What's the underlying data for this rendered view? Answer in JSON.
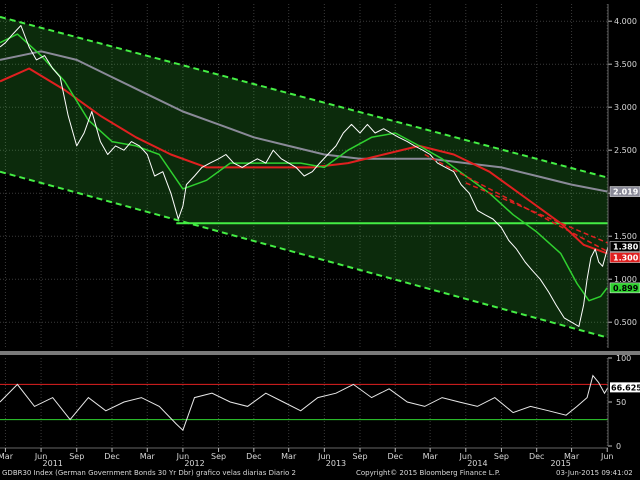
{
  "chart_data": [
    {
      "type": "line",
      "panel": "price",
      "y_scale": "linear",
      "ylim": [
        0.2,
        4.2
      ],
      "y_ticks": [
        "4.000",
        "3.500",
        "3.000",
        "2.500",
        "2.000",
        "1.500",
        "1.000",
        "0.500"
      ],
      "grid": true,
      "x_axis": {
        "month_ticks": [
          "Mar",
          "Jun",
          "Sep",
          "Dec",
          "Mar",
          "Jun",
          "Sep",
          "Dec",
          "Mar",
          "Jun",
          "Sep",
          "Dec",
          "Mar",
          "Jun",
          "Sep",
          "Dec",
          "Mar",
          "Jun"
        ],
        "month_dates": [
          "2011-03",
          "2011-06",
          "2011-09",
          "2011-12",
          "2012-03",
          "2012-06",
          "2012-09",
          "2012-12",
          "2013-03",
          "2013-06",
          "2013-09",
          "2013-12",
          "2014-03",
          "2014-06",
          "2014-09",
          "2014-12",
          "2015-03",
          "2015-06"
        ],
        "year_ticks": [
          "2011",
          "2012",
          "2013",
          "2014",
          "2015"
        ],
        "year_dates": [
          "2011-07",
          "2012-07",
          "2013-07",
          "2014-07",
          "2015-02"
        ]
      },
      "series": [
        {
          "color": "#ffffff",
          "x": [
            "2011-02-15",
            "2011-03-01",
            "2011-03-20",
            "2011-04-10",
            "2011-05-01",
            "2011-05-20",
            "2011-06-10",
            "2011-07-01",
            "2011-07-20",
            "2011-08-10",
            "2011-09-01",
            "2011-09-20",
            "2011-10-10",
            "2011-11-01",
            "2011-11-20",
            "2011-12-10",
            "2012-01-01",
            "2012-01-20",
            "2012-02-10",
            "2012-03-01",
            "2012-03-20",
            "2012-04-10",
            "2012-05-01",
            "2012-05-20",
            "2012-06-01",
            "2012-06-10",
            "2012-07-01",
            "2012-07-20",
            "2012-08-10",
            "2012-09-01",
            "2012-09-20",
            "2012-10-10",
            "2012-11-01",
            "2012-11-20",
            "2012-12-10",
            "2013-01-01",
            "2013-01-20",
            "2013-02-10",
            "2013-03-01",
            "2013-03-20",
            "2013-04-10",
            "2013-05-01",
            "2013-05-20",
            "2013-06-10",
            "2013-07-01",
            "2013-07-20",
            "2013-08-10",
            "2013-09-01",
            "2013-09-20",
            "2013-10-10",
            "2013-11-01",
            "2013-11-20",
            "2013-12-10",
            "2014-01-01",
            "2014-01-20",
            "2014-02-10",
            "2014-03-01",
            "2014-03-20",
            "2014-04-10",
            "2014-05-01",
            "2014-05-20",
            "2014-06-10",
            "2014-07-01",
            "2014-07-20",
            "2014-08-10",
            "2014-09-01",
            "2014-09-20",
            "2014-10-10",
            "2014-11-01",
            "2014-11-20",
            "2014-12-10",
            "2015-01-01",
            "2015-01-20",
            "2015-02-10",
            "2015-03-01",
            "2015-03-20",
            "2015-04-01",
            "2015-04-10",
            "2015-04-20",
            "2015-05-01",
            "2015-05-10",
            "2015-05-20",
            "2015-06-03"
          ],
          "y": [
            3.7,
            3.75,
            3.85,
            3.95,
            3.7,
            3.55,
            3.6,
            3.45,
            3.35,
            2.9,
            2.55,
            2.7,
            2.95,
            2.6,
            2.45,
            2.55,
            2.5,
            2.6,
            2.55,
            2.45,
            2.2,
            2.25,
            2.0,
            1.7,
            1.85,
            2.1,
            2.2,
            2.3,
            2.35,
            2.4,
            2.45,
            2.35,
            2.3,
            2.35,
            2.4,
            2.35,
            2.5,
            2.4,
            2.35,
            2.3,
            2.2,
            2.25,
            2.35,
            2.45,
            2.55,
            2.7,
            2.8,
            2.7,
            2.8,
            2.7,
            2.75,
            2.7,
            2.65,
            2.6,
            2.55,
            2.5,
            2.45,
            2.35,
            2.3,
            2.25,
            2.1,
            2.0,
            1.8,
            1.75,
            1.7,
            1.6,
            1.45,
            1.35,
            1.2,
            1.1,
            1.0,
            0.85,
            0.7,
            0.55,
            0.5,
            0.45,
            0.7,
            1.0,
            1.25,
            1.35,
            1.2,
            1.15,
            1.38
          ]
        },
        {
          "color": "#2fd02f",
          "x": [
            "2011-02-15",
            "2011-04-01",
            "2011-06-01",
            "2011-08-01",
            "2011-10-01",
            "2011-12-01",
            "2012-02-01",
            "2012-04-01",
            "2012-06-01",
            "2012-08-01",
            "2012-10-01",
            "2012-12-01",
            "2013-02-01",
            "2013-04-01",
            "2013-06-01",
            "2013-08-01",
            "2013-10-01",
            "2013-12-01",
            "2014-02-01",
            "2014-04-01",
            "2014-06-01",
            "2014-08-01",
            "2014-10-01",
            "2014-12-01",
            "2015-02-01",
            "2015-03-15",
            "2015-04-15",
            "2015-05-15",
            "2015-06-01"
          ],
          "y": [
            3.75,
            3.85,
            3.6,
            3.3,
            2.85,
            2.6,
            2.55,
            2.45,
            2.05,
            2.15,
            2.35,
            2.35,
            2.35,
            2.35,
            2.3,
            2.5,
            2.65,
            2.7,
            2.55,
            2.4,
            2.2,
            2.0,
            1.75,
            1.55,
            1.3,
            0.95,
            0.75,
            0.8,
            0.9
          ]
        },
        {
          "color": "#e02020",
          "x": [
            "2011-02-15",
            "2011-05-01",
            "2011-08-01",
            "2011-11-01",
            "2012-02-01",
            "2012-05-01",
            "2012-08-01",
            "2012-11-01",
            "2013-02-01",
            "2013-05-01",
            "2013-08-01",
            "2013-11-01",
            "2014-02-01",
            "2014-05-01",
            "2014-08-01",
            "2014-11-01",
            "2015-02-01",
            "2015-04-01",
            "2015-06-01"
          ],
          "y": [
            3.3,
            3.45,
            3.2,
            2.9,
            2.65,
            2.45,
            2.3,
            2.3,
            2.3,
            2.3,
            2.35,
            2.45,
            2.55,
            2.45,
            2.25,
            1.95,
            1.65,
            1.4,
            1.3
          ]
        },
        {
          "color": "#8a8a98",
          "x": [
            "2011-02-15",
            "2011-06-01",
            "2011-09-01",
            "2011-12-01",
            "2012-03-01",
            "2012-06-01",
            "2012-09-01",
            "2012-12-01",
            "2013-03-01",
            "2013-06-01",
            "2013-09-01",
            "2013-12-01",
            "2014-03-01",
            "2014-06-01",
            "2014-09-01",
            "2014-12-01",
            "2015-03-01",
            "2015-06-01"
          ],
          "y": [
            3.55,
            3.65,
            3.55,
            3.35,
            3.15,
            2.95,
            2.8,
            2.65,
            2.55,
            2.45,
            2.4,
            2.4,
            2.4,
            2.35,
            2.3,
            2.2,
            2.1,
            2.02
          ]
        }
      ],
      "overlays": {
        "channel_color": "#44ee44",
        "channel_upper": {
          "x": [
            "2011-02-15",
            "2015-06-03"
          ],
          "y": [
            4.05,
            2.18
          ]
        },
        "channel_lower": {
          "x": [
            "2011-02-15",
            "2015-06-03"
          ],
          "y": [
            2.25,
            0.32
          ]
        },
        "support": {
          "x": [
            "2012-05-15",
            "2015-06-03"
          ],
          "y": [
            1.65,
            1.65
          ]
        },
        "red_dashed": [
          {
            "x": [
              "2014-02-15",
              "2015-06-03"
            ],
            "y": [
              2.45,
              1.32
            ]
          },
          {
            "x": [
              "2014-06-01",
              "2015-06-03"
            ],
            "y": [
              2.12,
              1.42
            ]
          }
        ]
      },
      "price_tags": [
        {
          "label": "2.019",
          "value": 2.019,
          "bg": "#8a8a98",
          "fg": "#ffffff"
        },
        {
          "label": "1.380",
          "value": 1.38,
          "bg": "#000000",
          "fg": "#ffffff"
        },
        {
          "label": "1.300",
          "value": 1.3,
          "bg": "#e02020",
          "fg": "#ffffff"
        },
        {
          "label": "0.899",
          "value": 0.899,
          "bg": "#2fd02f",
          "fg": "#000000"
        }
      ]
    },
    {
      "type": "line",
      "panel": "oscillator",
      "ylim": [
        0,
        100
      ],
      "y_ticks": [
        "100",
        "50",
        "0"
      ],
      "reference_lines": [
        {
          "value": 70,
          "color": "#e02020"
        },
        {
          "value": 30,
          "color": "#2fd02f"
        }
      ],
      "series": [
        {
          "color": "#e8e8e8",
          "x": [
            "2011-02-15",
            "2011-04-01",
            "2011-05-15",
            "2011-07-01",
            "2011-08-15",
            "2011-10-01",
            "2011-11-15",
            "2012-01-01",
            "2012-02-15",
            "2012-04-01",
            "2012-05-15",
            "2012-06-01",
            "2012-07-01",
            "2012-08-15",
            "2012-10-01",
            "2012-11-15",
            "2013-01-01",
            "2013-02-15",
            "2013-04-01",
            "2013-05-15",
            "2013-07-01",
            "2013-08-15",
            "2013-10-01",
            "2013-11-15",
            "2014-01-01",
            "2014-02-15",
            "2014-04-01",
            "2014-05-15",
            "2014-07-01",
            "2014-08-15",
            "2014-10-01",
            "2014-11-15",
            "2015-01-01",
            "2015-02-15",
            "2015-03-15",
            "2015-04-10",
            "2015-04-25",
            "2015-05-10",
            "2015-05-25",
            "2015-06-03"
          ],
          "y": [
            50,
            70,
            45,
            55,
            30,
            55,
            40,
            50,
            55,
            45,
            25,
            18,
            55,
            60,
            50,
            45,
            60,
            50,
            40,
            55,
            60,
            70,
            55,
            65,
            50,
            45,
            55,
            50,
            45,
            55,
            38,
            45,
            40,
            35,
            45,
            55,
            80,
            72,
            60,
            66.6252
          ]
        }
      ],
      "price_tags": [
        {
          "label": "66.6252",
          "value": 66.6252,
          "bg": "#ffffff",
          "fg": "#000000"
        }
      ]
    }
  ],
  "footer": {
    "index_label": "GDBR30 Index (German Government Bonds 30 Yr Dbr) grafico velas diarias  Diario 2",
    "copyright": "Copyright© 2015 Bloomberg Finance L.P.",
    "timestamp": "03-Jun-2015 09:41:02"
  }
}
